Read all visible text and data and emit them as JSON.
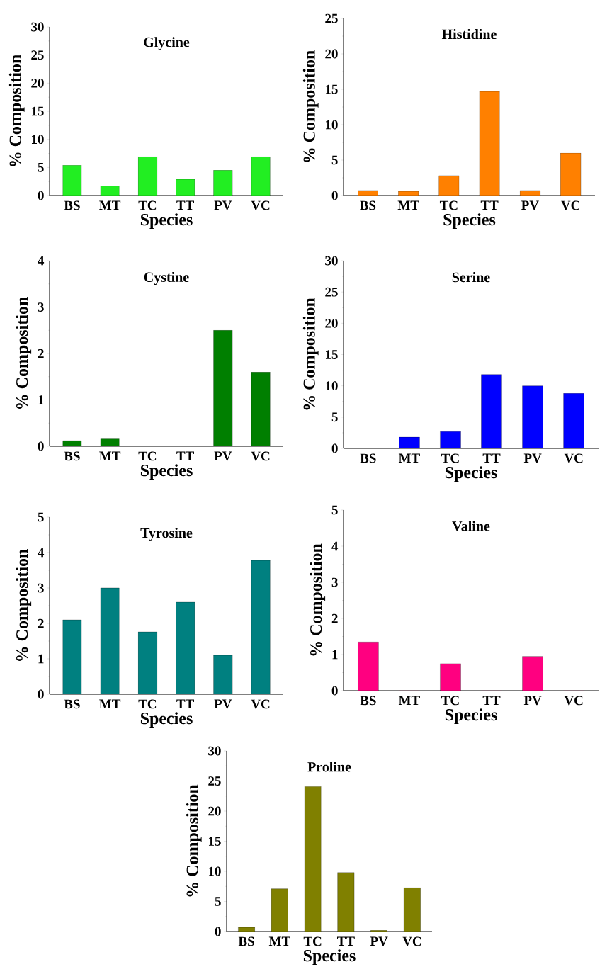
{
  "chart_data": [
    {
      "type": "bar",
      "title": "Glycine",
      "xlabel": "Species",
      "ylabel": "% Composition",
      "categories": [
        "BS",
        "MT",
        "TC",
        "TT",
        "PV",
        "VC"
      ],
      "values": [
        5.4,
        1.7,
        6.9,
        2.9,
        4.5,
        6.9
      ],
      "color": "#22ee22",
      "ylim": [
        0,
        30
      ],
      "yticks": [
        0,
        5,
        10,
        15,
        20,
        25,
        30
      ]
    },
    {
      "type": "bar",
      "title": "Histidine",
      "xlabel": "Species",
      "ylabel": "% Composition",
      "categories": [
        "BS",
        "MT",
        "TC",
        "TT",
        "PV",
        "VC"
      ],
      "values": [
        0.7,
        0.6,
        2.8,
        14.7,
        0.7,
        6.0
      ],
      "color": "#ff8000",
      "ylim": [
        0,
        25
      ],
      "yticks": [
        0,
        5,
        10,
        15,
        20,
        25
      ]
    },
    {
      "type": "bar",
      "title": "Cystine",
      "xlabel": "Species",
      "ylabel": "% Composition",
      "categories": [
        "BS",
        "MT",
        "TC",
        "TT",
        "PV",
        "VC"
      ],
      "values": [
        0.12,
        0.16,
        0,
        0,
        2.5,
        1.6
      ],
      "color": "#007f00",
      "ylim": [
        0,
        4
      ],
      "yticks": [
        0,
        1,
        2,
        3,
        4
      ]
    },
    {
      "type": "bar",
      "title": "Serine",
      "xlabel": "Species",
      "ylabel": "% Composition",
      "categories": [
        "BS",
        "MT",
        "TC",
        "TT",
        "PV",
        "VC"
      ],
      "values": [
        0,
        1.8,
        2.7,
        11.8,
        10.0,
        8.8
      ],
      "color": "#0000ff",
      "ylim": [
        0,
        30
      ],
      "yticks": [
        0,
        5,
        10,
        15,
        20,
        25,
        30
      ]
    },
    {
      "type": "bar",
      "title": "Tyrosine",
      "xlabel": "Species",
      "ylabel": "% Composition",
      "categories": [
        "BS",
        "MT",
        "TC",
        "TT",
        "PV",
        "VC"
      ],
      "values": [
        2.1,
        3.0,
        1.76,
        2.6,
        1.1,
        3.78
      ],
      "color": "#008080",
      "ylim": [
        0,
        5
      ],
      "yticks": [
        0,
        1,
        2,
        3,
        4,
        5
      ]
    },
    {
      "type": "bar",
      "title": "Valine",
      "xlabel": "Species",
      "ylabel": "% Composition",
      "categories": [
        "BS",
        "MT",
        "TC",
        "TT",
        "PV",
        "VC"
      ],
      "values": [
        1.35,
        0,
        0.75,
        0,
        0.95,
        0
      ],
      "color": "#ff0080",
      "ylim": [
        0,
        5
      ],
      "yticks": [
        0,
        1,
        2,
        3,
        4,
        5
      ]
    },
    {
      "type": "bar",
      "title": "Proline",
      "xlabel": "Species",
      "ylabel": "% Composition",
      "categories": [
        "BS",
        "MT",
        "TC",
        "TT",
        "PV",
        "VC"
      ],
      "values": [
        0.7,
        7.1,
        24.1,
        9.8,
        0.2,
        7.3
      ],
      "color": "#808000",
      "ylim": [
        0,
        30
      ],
      "yticks": [
        0,
        5,
        10,
        15,
        20,
        25,
        30
      ]
    }
  ]
}
